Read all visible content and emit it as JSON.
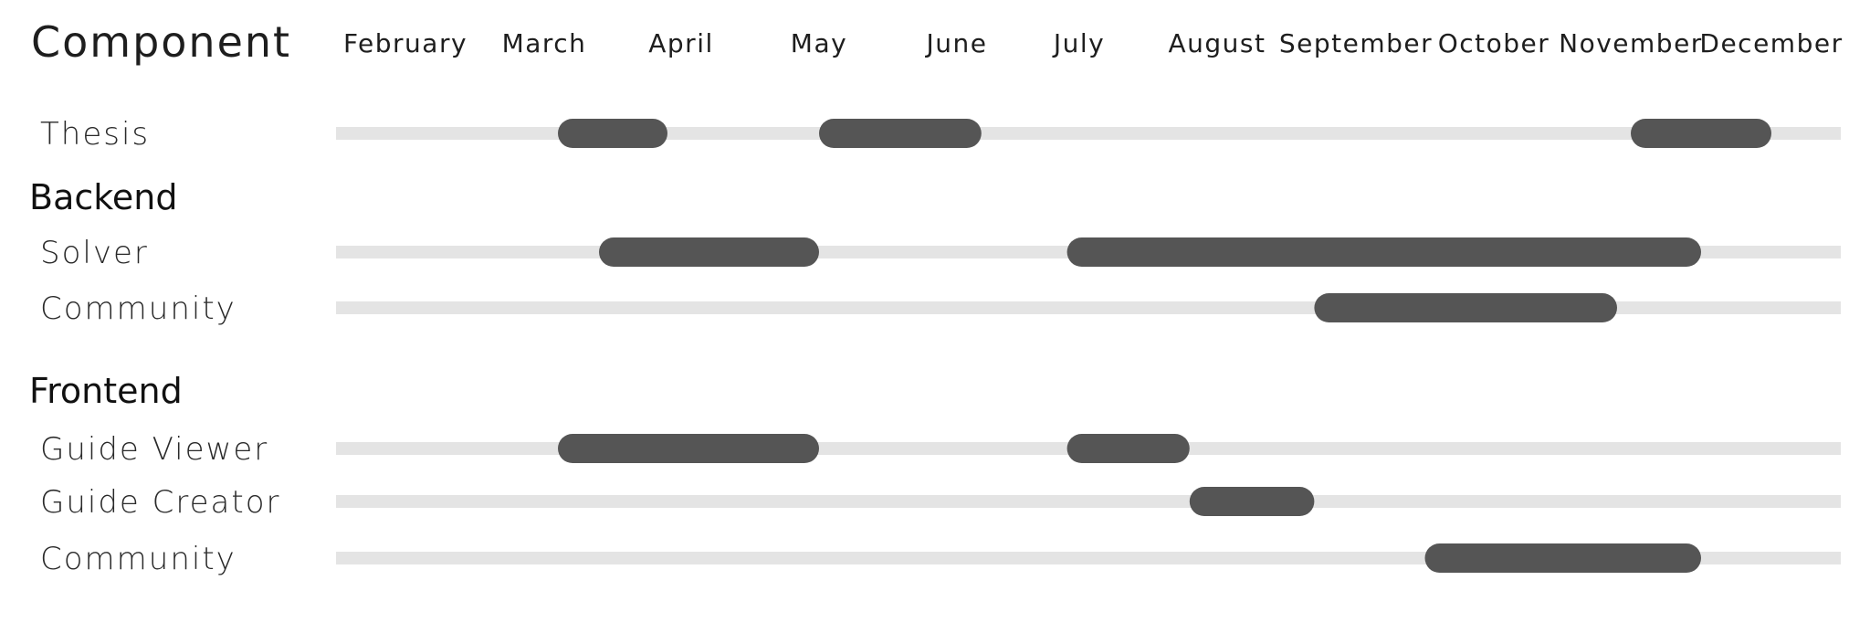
{
  "chart_data": {
    "type": "gantt",
    "title": "Component",
    "months": [
      "February",
      "March",
      "April",
      "May",
      "June",
      "July",
      "August",
      "September",
      "October",
      "November",
      "December"
    ],
    "x_unit": "month",
    "x_range": [
      1.6,
      12.5
    ],
    "colors": {
      "track": "#e4e4e4",
      "bar": "#555555"
    },
    "rows": [
      {
        "kind": "row",
        "label": "Thesis",
        "bars": [
          [
            3.1,
            3.9
          ],
          [
            5.0,
            6.2
          ],
          [
            11.0,
            12.0
          ]
        ]
      },
      {
        "kind": "section",
        "label": "Backend"
      },
      {
        "kind": "row",
        "label": "Solver",
        "bars": [
          [
            3.4,
            5.0
          ],
          [
            6.9,
            11.5
          ]
        ]
      },
      {
        "kind": "row",
        "label": "Community",
        "bars": [
          [
            8.7,
            10.9
          ]
        ]
      },
      {
        "kind": "section",
        "label": "Frontend"
      },
      {
        "kind": "row",
        "label": "Guide Viewer",
        "bars": [
          [
            3.1,
            5.0
          ],
          [
            6.9,
            7.8
          ]
        ]
      },
      {
        "kind": "row",
        "label": "Guide Creator",
        "bars": [
          [
            7.8,
            8.7
          ]
        ]
      },
      {
        "kind": "row",
        "label": "Community",
        "bars": [
          [
            9.5,
            11.5
          ]
        ]
      }
    ]
  }
}
